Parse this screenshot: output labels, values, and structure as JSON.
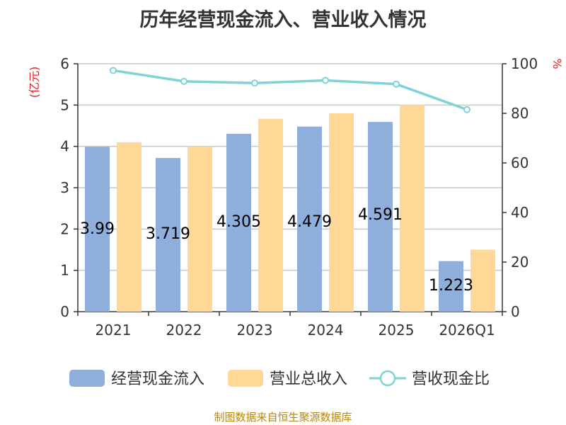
{
  "title": "历年经营现金流入、营业收入情况",
  "source": "制图数据来自恒生聚源数据库",
  "colors": {
    "cash_inflow": "#8eaedb",
    "revenue": "#ffd898",
    "ratio": "#7fd3d6",
    "grid": "#c8c8c8",
    "unit_label": "#e02020"
  },
  "chart_data": {
    "type": "bar",
    "title": "历年经营现金流入、营业收入情况",
    "categories": [
      "2021",
      "2022",
      "2023",
      "2024",
      "2025",
      "2026Q1"
    ],
    "series": [
      {
        "name": "经营现金流入",
        "type": "bar",
        "axis": "left",
        "values": [
          3.99,
          3.719,
          4.305,
          4.479,
          4.591,
          1.223
        ],
        "labels": [
          "3.99",
          "3.719",
          "4.305",
          "4.479",
          "4.591",
          "1.223"
        ]
      },
      {
        "name": "营业总收入",
        "type": "bar",
        "axis": "left",
        "values": [
          4.1,
          4.0,
          4.67,
          4.8,
          5.0,
          1.5
        ]
      },
      {
        "name": "营收现金比",
        "type": "line",
        "axis": "right",
        "values": [
          97.3,
          92.9,
          92.2,
          93.3,
          91.8,
          81.5
        ]
      }
    ],
    "y_left": {
      "label": "(亿元)",
      "ylim": [
        0,
        6
      ],
      "ticks": [
        0,
        1,
        2,
        3,
        4,
        5,
        6
      ]
    },
    "y_right": {
      "label": "%",
      "ylim": [
        0,
        100
      ],
      "ticks": [
        0,
        20,
        40,
        60,
        80,
        100
      ]
    },
    "grid": true,
    "legend_position": "bottom"
  }
}
